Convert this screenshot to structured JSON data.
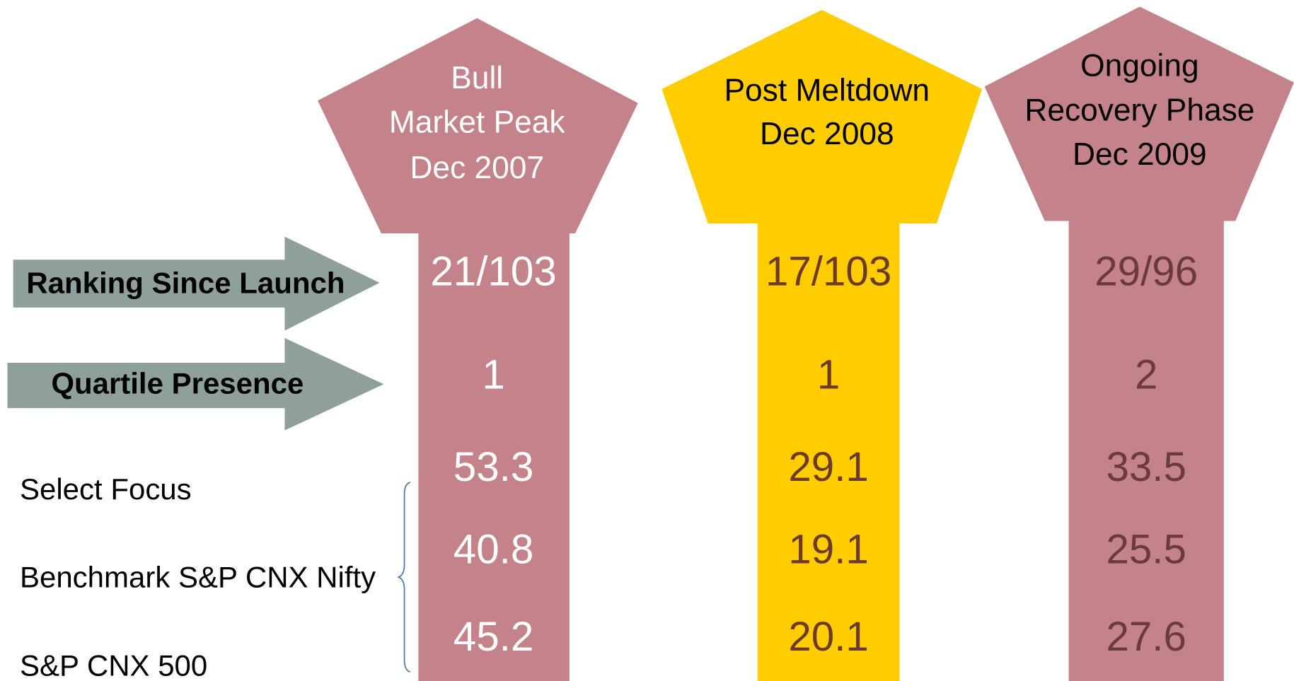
{
  "columns": [
    {
      "header": [
        "Bull",
        "Market Peak",
        "Dec 2007"
      ],
      "values": [
        "21/103",
        1,
        53.3,
        40.8,
        45.2
      ]
    },
    {
      "header": [
        "Post Meltdown",
        "Dec 2008"
      ],
      "values": [
        "17/103",
        1,
        29.1,
        19.1,
        20.1
      ]
    },
    {
      "header": [
        "Ongoing",
        "Recovery Phase",
        "Dec 2009"
      ],
      "values": [
        "29/96",
        2,
        33.5,
        25.5,
        27.6
      ]
    }
  ],
  "arrows": [
    "Ranking Since Launch",
    "Quartile Presence"
  ],
  "labels": [
    "Select Focus",
    "Benchmark S&P CNX Nifty",
    "S&P CNX 500"
  ]
}
